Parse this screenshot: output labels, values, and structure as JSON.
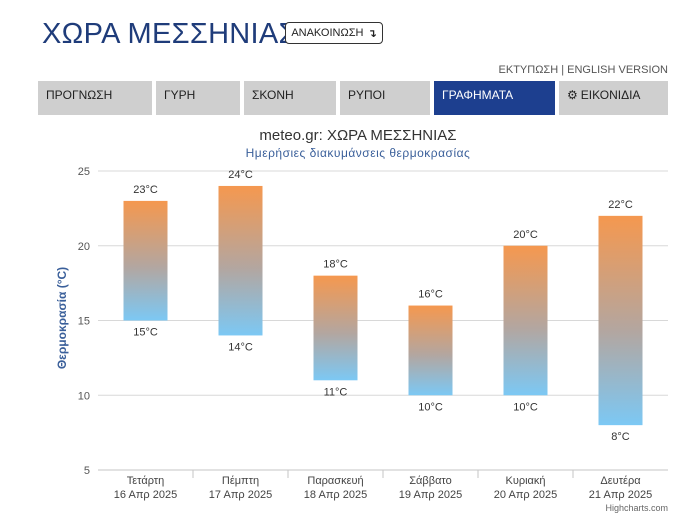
{
  "header": {
    "title": "ΧΩΡΑ ΜΕΣΣΗΝΙΑΣ",
    "announce_label": "ΑΝΑΚΟΙΝΩΣΗ",
    "announce_icon": "arrow-down-icon",
    "print_link": "ΕΚΤΥΠΩΣΗ",
    "separator": "|",
    "english_link": "ENGLISH VERSION"
  },
  "tabs": [
    {
      "label": "ΠΡΟΓΝΩΣΗ",
      "active": false
    },
    {
      "label": "ΓΥΡΗ",
      "active": false
    },
    {
      "label": "ΣΚΟΝΗ",
      "active": false
    },
    {
      "label": "ΡΥΠΟΙ",
      "active": false
    },
    {
      "label": "ΓΡΑΦΗΜΑΤΑ",
      "active": true
    },
    {
      "label": "ΕΙΚΟΝΙΔΙΑ",
      "active": false,
      "icon": "gear-icon"
    }
  ],
  "colors": {
    "accent": "#1d3f8f",
    "title": "#1f3c7a",
    "bar_top": "#f5984f",
    "bar_bottom": "#7cc8f4"
  },
  "chart_data": {
    "type": "bar",
    "subtype": "columnrange",
    "title": "meteo.gr: ΧΩΡΑ ΜΕΣΣΗΝΙΑΣ",
    "subtitle": "Ημερήσιες διακυμάνσεις θερμοκρασίας",
    "ylabel": "Θερμοκρασία (°C)",
    "xlabel": "",
    "ylim": [
      5,
      25
    ],
    "yticks": [
      5,
      10,
      15,
      20,
      25
    ],
    "grid": true,
    "credits": "Highcharts.com",
    "categories": [
      {
        "day": "Τετάρτη",
        "date": "16 Απρ 2025"
      },
      {
        "day": "Πέμπτη",
        "date": "17 Απρ 2025"
      },
      {
        "day": "Παρασκευή",
        "date": "18 Απρ 2025"
      },
      {
        "day": "Σάββατο",
        "date": "19 Απρ 2025"
      },
      {
        "day": "Κυριακή",
        "date": "20 Απρ 2025"
      },
      {
        "day": "Δευτέρα",
        "date": "21 Απρ 2025"
      }
    ],
    "series": [
      {
        "low": [
          15,
          14,
          11,
          10,
          10,
          8
        ],
        "high": [
          23,
          24,
          18,
          16,
          20,
          22
        ]
      }
    ],
    "unit": "°C"
  }
}
